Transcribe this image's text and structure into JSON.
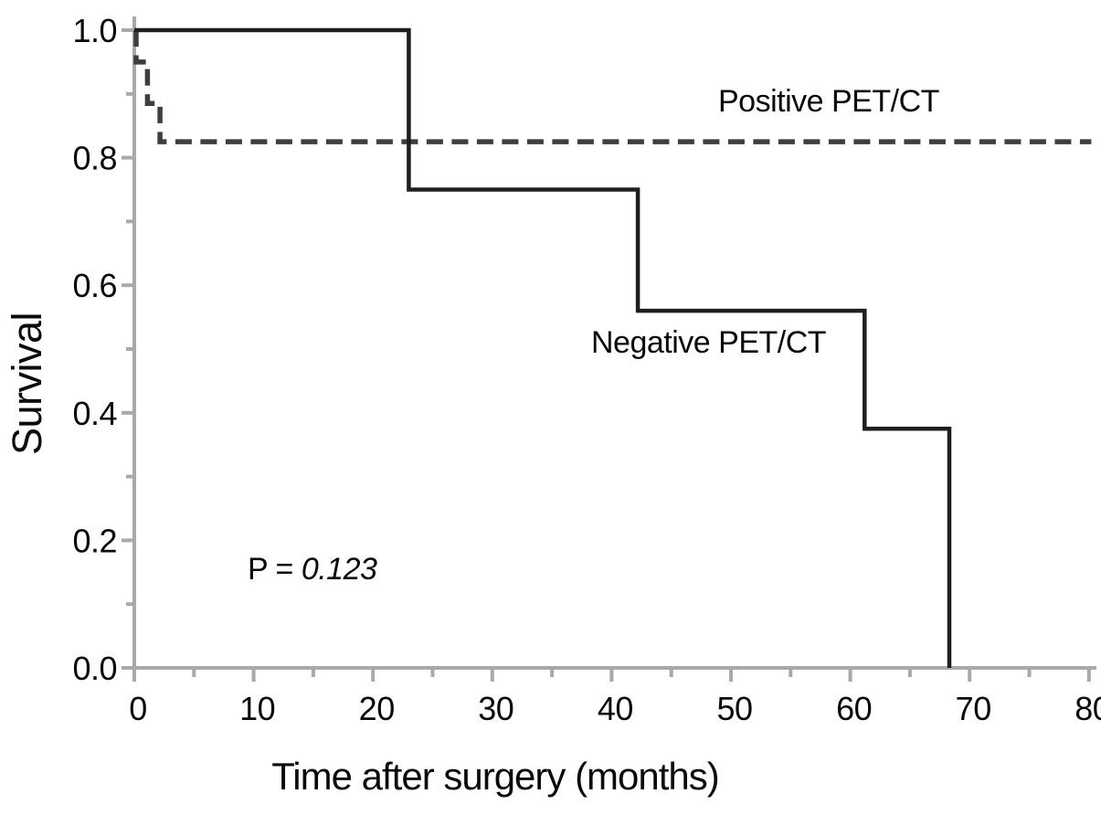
{
  "figure": {
    "background_color": "#ffffff",
    "text_color": "#0b0b0b"
  },
  "chart_data": {
    "type": "line",
    "subtype": "kaplan-meier-step",
    "title": "",
    "xlabel": "Time after surgery (months)",
    "ylabel": "Survival",
    "xlim": [
      0,
      80
    ],
    "ylim": [
      0.0,
      1.0
    ],
    "grid": false,
    "legend_position": "inline-curve-labels",
    "axis_color": "#a9a9a9",
    "x_ticks_major": [
      0,
      10,
      20,
      30,
      40,
      50,
      60,
      70,
      80
    ],
    "x_tick_labels": [
      "0",
      "10",
      "20",
      "30",
      "40",
      "50",
      "60",
      "70",
      "80"
    ],
    "x_ticks_minor": [
      5,
      15,
      25,
      35,
      45,
      55,
      65,
      75
    ],
    "y_ticks_major": [
      0.0,
      0.2,
      0.4,
      0.6,
      0.8,
      1.0
    ],
    "y_tick_labels": [
      "0.0",
      "0.2",
      "0.4",
      "0.6",
      "0.8",
      "1.0"
    ],
    "y_ticks_minor": [
      0.1,
      0.3,
      0.5,
      0.7,
      0.9
    ],
    "series": [
      {
        "name": "Positive PET/CT",
        "style": "dashed",
        "color": "#3e3e3e",
        "points": [
          [
            0.15,
            1.0
          ],
          [
            0.15,
            0.95
          ],
          [
            1.1,
            0.95
          ],
          [
            1.1,
            0.885
          ],
          [
            2.15,
            0.885
          ],
          [
            2.15,
            0.825
          ],
          [
            80.2,
            0.825
          ]
        ]
      },
      {
        "name": "Negative PET/CT",
        "style": "solid",
        "color": "#1e1e1e",
        "points": [
          [
            0,
            1.0
          ],
          [
            23,
            1.0
          ],
          [
            23,
            0.75
          ],
          [
            42.2,
            0.75
          ],
          [
            42.2,
            0.56
          ],
          [
            61.2,
            0.56
          ],
          [
            61.2,
            0.375
          ],
          [
            68.3,
            0.375
          ],
          [
            68.3,
            0.0
          ]
        ]
      }
    ],
    "annotations": [
      {
        "prefix": "P = ",
        "value": "0.123"
      }
    ]
  }
}
